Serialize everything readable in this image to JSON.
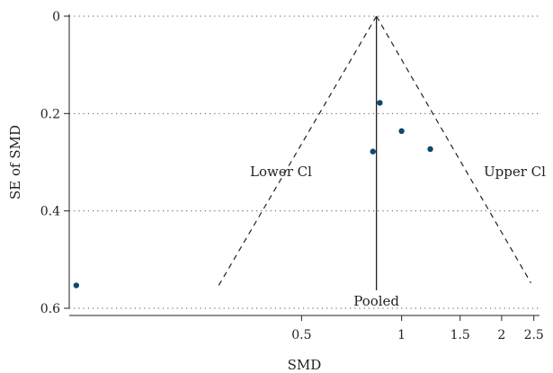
{
  "chart_data": {
    "type": "scatter",
    "title": "",
    "xlabel": "SMD",
    "ylabel": "SE of SMD",
    "x_scale": "log",
    "xlim": [
      0.1,
      2.6
    ],
    "ylim": [
      0.6,
      0
    ],
    "grid": "horizontal-dotted",
    "x_ticks": [
      {
        "value": 0.5,
        "label": "0.5"
      },
      {
        "value": 1,
        "label": "1"
      },
      {
        "value": 1.5,
        "label": "1.5"
      },
      {
        "value": 2,
        "label": "2"
      },
      {
        "value": 2.5,
        "label": "2.5"
      }
    ],
    "y_ticks": [
      {
        "value": 0,
        "label": "0"
      },
      {
        "value": 0.2,
        "label": "0.2"
      },
      {
        "value": 0.4,
        "label": "0.4"
      },
      {
        "value": 0.6,
        "label": "0.6"
      }
    ],
    "points": [
      {
        "x": 0.86,
        "y": 0.178
      },
      {
        "x": 1.0,
        "y": 0.236
      },
      {
        "x": 0.82,
        "y": 0.278
      },
      {
        "x": 1.22,
        "y": 0.273
      },
      {
        "x": 0.105,
        "y": 0.553
      }
    ],
    "pooled": {
      "x": 0.84,
      "label": "Pooled"
    },
    "ci_lines": [
      {
        "label": "Lower Cl",
        "from": {
          "x": 0.84,
          "y": 0
        },
        "to": {
          "x": 0.28,
          "y": 0.556
        }
      },
      {
        "label": "Upper Cl",
        "from": {
          "x": 0.84,
          "y": 0
        },
        "to": {
          "x": 2.45,
          "y": 0.548
        }
      }
    ],
    "point_color": "#0c4a6e"
  }
}
